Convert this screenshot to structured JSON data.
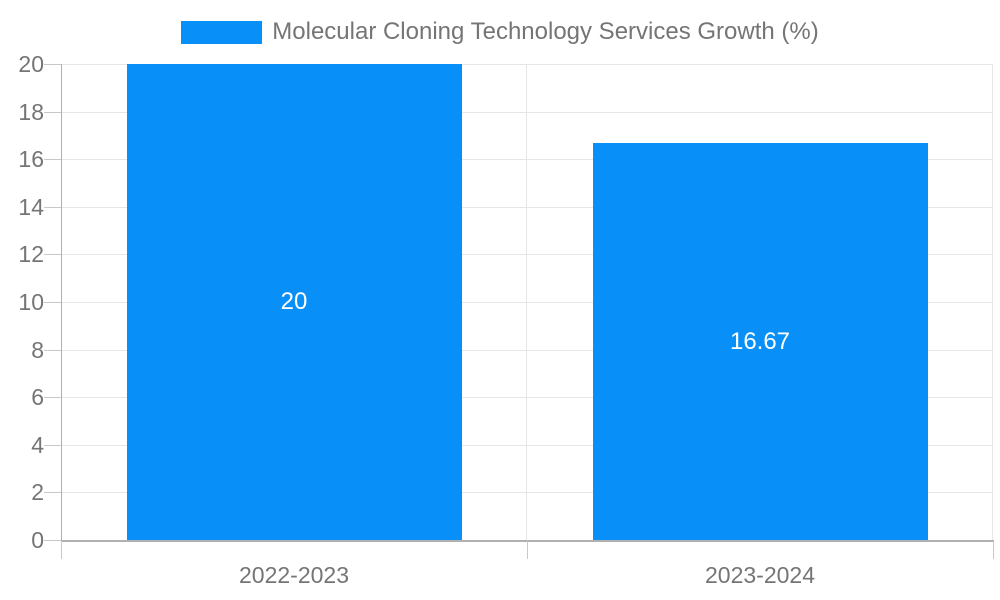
{
  "legend": {
    "label": "Molecular Cloning Technology Services Growth (%)"
  },
  "colors": {
    "bar": "#0890f8",
    "grid": "#e6e6e6",
    "axis": "#b0b0b0",
    "tick": "#c8c8c8",
    "text": "#757575",
    "bar_label": "#ffffff",
    "background": "#ffffff"
  },
  "chart_data": {
    "type": "bar",
    "title": "Molecular Cloning Technology Services Growth (%)",
    "categories": [
      "2022-2023",
      "2023-2024"
    ],
    "values": [
      20,
      16.67
    ],
    "bar_labels": [
      "20",
      "16.67"
    ],
    "xlabel": "",
    "ylabel": "",
    "ylim": [
      0,
      20
    ],
    "yticks": [
      0,
      2,
      4,
      6,
      8,
      10,
      12,
      14,
      16,
      18,
      20
    ],
    "grid": true,
    "legend_position": "top",
    "bar_label_position": "center"
  }
}
